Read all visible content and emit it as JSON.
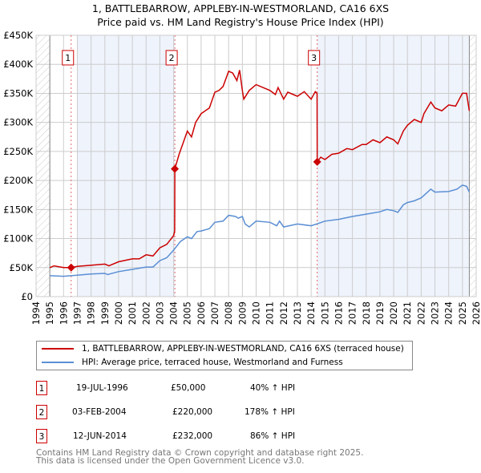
{
  "title_line1": "1, BATTLEBARROW, APPLEBY-IN-WESTMORLAND, CA16 6XS",
  "title_line2": "Price paid vs. HM Land Registry's House Price Index (HPI)",
  "legend": [
    {
      "label": "1, BATTLEBARROW, APPLEBY-IN-WESTMORLAND, CA16 6XS (terraced house)",
      "color": "#cc0000"
    },
    {
      "label": "HPI: Average price, terraced house, Westmorland and Furness",
      "color": "#5b8fd4"
    }
  ],
  "sales": [
    {
      "num": "1",
      "date": "19-JUL-1996",
      "price": "£50,000",
      "hpi": "40% ↑ HPI",
      "x": 1996.55,
      "y": 50000
    },
    {
      "num": "2",
      "date": "03-FEB-2004",
      "price": "£220,000",
      "hpi": "178% ↑ HPI",
      "x": 2004.09,
      "y": 220000
    },
    {
      "num": "3",
      "date": "12-JUN-2014",
      "price": "£232,000",
      "hpi": "86% ↑ HPI",
      "x": 2014.44,
      "y": 232000
    }
  ],
  "footer_line1": "Contains HM Land Registry data © Crown copyright and database right 2025.",
  "footer_line2": "This data is licensed under the Open Government Licence v3.0.",
  "chart_data": {
    "type": "line",
    "xlim": [
      1994,
      2026
    ],
    "ylim": [
      0,
      450000
    ],
    "yticks": [
      0,
      50000,
      100000,
      150000,
      200000,
      250000,
      300000,
      350000,
      400000,
      450000
    ],
    "ytick_labels": [
      "£0",
      "£50K",
      "£100K",
      "£150K",
      "£200K",
      "£250K",
      "£300K",
      "£350K",
      "£400K",
      "£450K"
    ],
    "xticks": [
      1994,
      1995,
      1996,
      1997,
      1998,
      1999,
      2000,
      2001,
      2002,
      2003,
      2004,
      2005,
      2006,
      2007,
      2008,
      2009,
      2010,
      2011,
      2012,
      2013,
      2014,
      2015,
      2016,
      2017,
      2018,
      2019,
      2020,
      2021,
      2022,
      2023,
      2024,
      2025,
      2026
    ],
    "grid": true,
    "shaded_ranges": [
      [
        1997,
        2004.09
      ],
      [
        2014.44,
        2025.5
      ]
    ],
    "hatched_ranges": [
      [
        1994,
        1995
      ],
      [
        2025.5,
        2026
      ]
    ],
    "series": [
      {
        "name": "1, BATTLEBARROW, APPLEBY-IN-WESTMORLAND, CA16 6XS (terraced house)",
        "color": "#cc0000",
        "x": [
          1995,
          1995.3,
          1996,
          1996.55,
          1997,
          1998,
          1999,
          1999.3,
          2000,
          2001,
          2001.5,
          2002,
          2002.5,
          2003,
          2003.5,
          2004.0,
          2004.08,
          2004.09,
          2004.4,
          2005,
          2005.3,
          2005.6,
          2006,
          2006.6,
          2007,
          2007.3,
          2007.6,
          2008,
          2008.3,
          2008.6,
          2008.8,
          2009,
          2009.1,
          2009.5,
          2010,
          2011,
          2011.4,
          2011.6,
          2012,
          2012.3,
          2013,
          2013.5,
          2014,
          2014.3,
          2014.43,
          2014.44,
          2014.7,
          2015,
          2015.5,
          2016,
          2016.6,
          2017,
          2017.7,
          2018,
          2018.5,
          2019,
          2019.5,
          2020,
          2020.3,
          2020.7,
          2021,
          2021.5,
          2022,
          2022.2,
          2022.7,
          2023,
          2023.5,
          2024,
          2024.5,
          2025,
          2025.3,
          2025.5
        ],
        "y": [
          50000,
          53000,
          50000,
          50000,
          52000,
          54000,
          56000,
          53000,
          60000,
          65000,
          65000,
          72000,
          70000,
          84000,
          90000,
          105000,
          113000,
          220000,
          245000,
          285000,
          275000,
          300000,
          315000,
          325000,
          352000,
          355000,
          362000,
          388000,
          385000,
          372000,
          390000,
          355000,
          340000,
          355000,
          365000,
          355000,
          348000,
          360000,
          340000,
          352000,
          345000,
          353000,
          340000,
          353000,
          350000,
          232000,
          240000,
          236000,
          245000,
          247000,
          255000,
          253000,
          262000,
          262000,
          270000,
          265000,
          275000,
          270000,
          263000,
          285000,
          295000,
          305000,
          300000,
          315000,
          335000,
          325000,
          320000,
          330000,
          328000,
          350000,
          350000,
          320000
        ]
      },
      {
        "name": "HPI: Average price, terraced house, Westmorland and Furness",
        "color": "#5b8fd4",
        "x": [
          1995,
          1996,
          1997,
          1998,
          1999,
          1999.2,
          2000,
          2001,
          2002,
          2002.5,
          2003,
          2003.5,
          2004,
          2004.5,
          2005,
          2005.3,
          2005.7,
          2006,
          2006.6,
          2007,
          2007.6,
          2008,
          2008.5,
          2008.7,
          2009,
          2009.2,
          2009.5,
          2010,
          2011,
          2011.5,
          2011.7,
          2012,
          2013,
          2014,
          2014.4,
          2015,
          2016,
          2017,
          2018,
          2019,
          2019.5,
          2020,
          2020.3,
          2020.7,
          2021,
          2021.5,
          2022,
          2022.7,
          2023,
          2024,
          2024.6,
          2025,
          2025.3,
          2025.5
        ],
        "y": [
          36000,
          35000,
          37000,
          39000,
          40000,
          38000,
          43000,
          47000,
          51000,
          51000,
          62000,
          67000,
          80000,
          95000,
          103000,
          100000,
          112000,
          113000,
          117000,
          128000,
          130000,
          140000,
          138000,
          135000,
          138000,
          125000,
          120000,
          130000,
          128000,
          122000,
          130000,
          120000,
          125000,
          122000,
          125000,
          130000,
          133000,
          138000,
          142000,
          146000,
          150000,
          148000,
          145000,
          158000,
          162000,
          165000,
          170000,
          185000,
          180000,
          181000,
          185000,
          192000,
          190000,
          180000
        ]
      }
    ]
  }
}
